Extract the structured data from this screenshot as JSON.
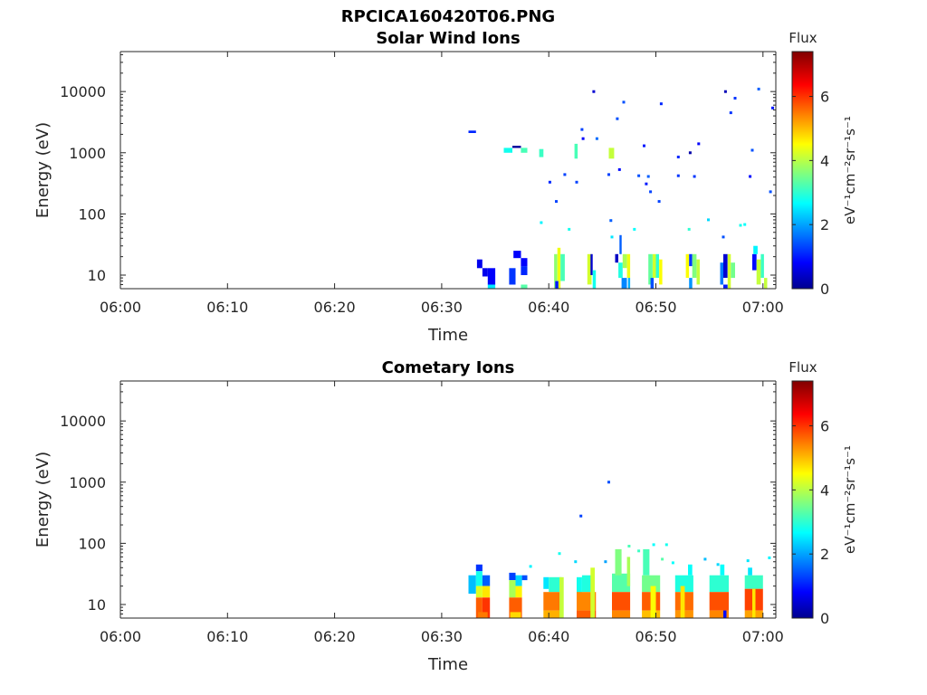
{
  "figure_title": "RPCICA160420T06.PNG",
  "chart_data": [
    {
      "type": "heatmap",
      "title": "Solar Wind Ions",
      "xlabel": "Time",
      "ylabel": "Energy (eV)",
      "x_ticks": [
        "06:00",
        "06:10",
        "06:20",
        "06:30",
        "06:40",
        "06:50",
        "07:00"
      ],
      "xlim_min": [
        0,
        61.2
      ],
      "y_scale": "log",
      "ylim": [
        6,
        45000
      ],
      "y_ticks": [
        10,
        100,
        1000,
        10000
      ],
      "y_tick_labels": [
        "10",
        "100",
        "1000",
        "10000"
      ],
      "colorbar": {
        "title": "Flux",
        "label": "eV⁻¹cm⁻²sr⁻¹s⁻¹",
        "min": 0,
        "max": 7.4,
        "ticks": [
          0,
          2,
          4,
          6
        ],
        "colormap": "jet"
      },
      "cells": [
        [
          32.5,
          33.2,
          2100,
          2300,
          1.2
        ],
        [
          33.3,
          33.8,
          13,
          18,
          0.8
        ],
        [
          33.8,
          34.3,
          9.5,
          13,
          0.8
        ],
        [
          34.3,
          35.0,
          7,
          13,
          0.9
        ],
        [
          34.3,
          35.0,
          6,
          7,
          2.6
        ],
        [
          36.7,
          37.4,
          19,
          25,
          0.9
        ],
        [
          36.3,
          36.9,
          7,
          13,
          1.3
        ],
        [
          37.4,
          38.0,
          14,
          19,
          0.9
        ],
        [
          37.4,
          38.0,
          10,
          14,
          1.2
        ],
        [
          37.4,
          38.0,
          6,
          7,
          3.4
        ],
        [
          35.8,
          36.6,
          1000,
          1200,
          2.9
        ],
        [
          36.6,
          37.4,
          1200,
          1300,
          0.2
        ],
        [
          37.4,
          38.0,
          1000,
          1200,
          3.3
        ],
        [
          39.1,
          39.5,
          850,
          1150,
          3.2
        ],
        [
          40.5,
          40.8,
          6,
          22,
          3.8
        ],
        [
          40.8,
          41.1,
          6,
          28,
          4.5
        ],
        [
          41.1,
          41.5,
          8,
          22,
          3.3
        ],
        [
          40.6,
          40.9,
          6,
          8,
          1.1
        ],
        [
          42.4,
          42.7,
          800,
          1400,
          3.3
        ],
        [
          43.6,
          44.0,
          7,
          22,
          4.3
        ],
        [
          43.9,
          44.1,
          10,
          22,
          0.6
        ],
        [
          44.1,
          44.4,
          6,
          12,
          2.9
        ],
        [
          45.6,
          46.1,
          800,
          1200,
          4.2
        ],
        [
          46.2,
          46.5,
          16,
          22,
          0.5
        ],
        [
          46.5,
          46.9,
          9,
          16,
          3.0
        ],
        [
          46.9,
          47.3,
          13,
          22,
          4.0
        ],
        [
          47.3,
          47.6,
          9,
          22,
          4.5
        ],
        [
          46.8,
          47.3,
          6,
          9,
          1.9
        ],
        [
          46.6,
          46.8,
          22,
          45,
          1.6
        ],
        [
          47.4,
          47.6,
          6,
          9,
          2.2
        ],
        [
          49.3,
          49.7,
          7,
          22,
          3.5
        ],
        [
          49.7,
          50.0,
          9,
          22,
          4.3
        ],
        [
          50.0,
          50.3,
          9,
          22,
          3.1
        ],
        [
          50.3,
          50.6,
          7,
          18,
          4.6
        ],
        [
          49.5,
          49.8,
          6,
          9,
          1.5
        ],
        [
          52.8,
          53.1,
          9,
          22,
          4.6
        ],
        [
          53.1,
          53.4,
          14,
          22,
          1.3
        ],
        [
          53.4,
          53.8,
          9,
          22,
          3.7
        ],
        [
          53.8,
          54.1,
          7,
          18,
          4.2
        ],
        [
          53.1,
          53.4,
          6,
          9,
          2.0
        ],
        [
          56.0,
          56.3,
          7,
          16,
          1.8
        ],
        [
          56.3,
          56.7,
          9,
          22,
          0.6
        ],
        [
          56.7,
          57.0,
          6,
          22,
          4.3
        ],
        [
          57.0,
          57.4,
          9,
          16,
          3.6
        ],
        [
          56.3,
          56.7,
          6,
          7,
          1.1
        ],
        [
          59.0,
          59.4,
          12,
          22,
          1.0
        ],
        [
          59.1,
          59.5,
          22,
          30,
          2.7
        ],
        [
          59.4,
          59.8,
          7,
          18,
          4.2
        ],
        [
          59.8,
          60.1,
          9,
          22,
          3.2
        ],
        [
          60.1,
          60.4,
          6,
          9,
          4.2
        ]
      ],
      "dots": [
        [
          44.2,
          10000,
          0.6
        ],
        [
          47.0,
          6700,
          1.5
        ],
        [
          50.5,
          6300,
          1.2
        ],
        [
          56.5,
          10000,
          0.4
        ],
        [
          57.4,
          7800,
          1.3
        ],
        [
          59.6,
          11000,
          1.6
        ],
        [
          60.9,
          5400,
          1.1
        ],
        [
          46.4,
          3600,
          1.5
        ],
        [
          43.1,
          2400,
          1.4
        ],
        [
          57.0,
          4500,
          1.3
        ],
        [
          43.2,
          1700,
          0.9
        ],
        [
          44.5,
          1700,
          1.7
        ],
        [
          48.9,
          1300,
          1.1
        ],
        [
          54.0,
          1400,
          0.9
        ],
        [
          53.2,
          1000,
          0.3
        ],
        [
          59.0,
          1100,
          1.5
        ],
        [
          52.1,
          850,
          1.2
        ],
        [
          41.5,
          440,
          1.4
        ],
        [
          42.6,
          330,
          1.4
        ],
        [
          40.1,
          330,
          1.2
        ],
        [
          45.6,
          440,
          1.4
        ],
        [
          46.6,
          530,
          1.0
        ],
        [
          48.4,
          420,
          1.5
        ],
        [
          49.3,
          410,
          1.6
        ],
        [
          49.1,
          310,
          1.1
        ],
        [
          49.5,
          230,
          1.4
        ],
        [
          50.3,
          160,
          1.4
        ],
        [
          52.1,
          420,
          1.3
        ],
        [
          53.6,
          410,
          1.3
        ],
        [
          58.8,
          410,
          1.0
        ],
        [
          60.7,
          230,
          1.5
        ],
        [
          40.7,
          160,
          1.4
        ],
        [
          39.3,
          72,
          2.7
        ],
        [
          41.9,
          56,
          2.9
        ],
        [
          45.8,
          78,
          1.6
        ],
        [
          48.0,
          56,
          2.8
        ],
        [
          54.9,
          80,
          2.5
        ],
        [
          58.3,
          67,
          2.8
        ],
        [
          45.9,
          42,
          2.6
        ],
        [
          56.3,
          42,
          1.5
        ],
        [
          57.9,
          65,
          2.9
        ],
        [
          53.1,
          56,
          3.1
        ]
      ]
    },
    {
      "type": "heatmap",
      "title": "Cometary Ions",
      "xlabel": "Time",
      "ylabel": "Energy (eV)",
      "x_ticks": [
        "06:00",
        "06:10",
        "06:20",
        "06:30",
        "06:40",
        "06:50",
        "07:00"
      ],
      "xlim_min": [
        0,
        61.2
      ],
      "y_scale": "log",
      "ylim": [
        6,
        45000
      ],
      "y_ticks": [
        10,
        100,
        1000,
        10000
      ],
      "y_tick_labels": [
        "10",
        "100",
        "1000",
        "10000"
      ],
      "colorbar": {
        "title": "Flux",
        "label": "eV⁻¹cm⁻²sr⁻¹s⁻¹",
        "min": 0,
        "max": 7.4,
        "ticks": [
          0,
          2,
          4,
          6
        ],
        "colormap": "jet"
      },
      "cells": [
        [
          33.2,
          33.8,
          35,
          45,
          1.3
        ],
        [
          32.5,
          33.2,
          15,
          30,
          2.3
        ],
        [
          33.2,
          33.8,
          20,
          35,
          2.9
        ],
        [
          33.8,
          34.5,
          20,
          30,
          1.6
        ],
        [
          33.2,
          33.8,
          13,
          20,
          4.4
        ],
        [
          33.8,
          34.5,
          13,
          20,
          4.8
        ],
        [
          33.2,
          33.8,
          6,
          13,
          5.8
        ],
        [
          33.8,
          34.5,
          6,
          13,
          6.1
        ],
        [
          33.4,
          34.3,
          6,
          7.5,
          5.6
        ],
        [
          36.3,
          36.9,
          25,
          33,
          1.4
        ],
        [
          36.9,
          37.5,
          20,
          30,
          2.5
        ],
        [
          36.3,
          36.9,
          13,
          25,
          4.0
        ],
        [
          36.9,
          37.5,
          13,
          20,
          4.7
        ],
        [
          36.3,
          37.5,
          6,
          13,
          5.8
        ],
        [
          36.4,
          37.4,
          6,
          7.5,
          4.9
        ],
        [
          37.5,
          38.0,
          25,
          30,
          1.5
        ],
        [
          39.5,
          40.0,
          18,
          28,
          2.6
        ],
        [
          40.0,
          41.2,
          16,
          28,
          3.1
        ],
        [
          39.5,
          41.3,
          8,
          16,
          5.6
        ],
        [
          39.5,
          41.3,
          6,
          8,
          5.2
        ],
        [
          41.0,
          41.4,
          6,
          28,
          4.2
        ],
        [
          42.6,
          43.1,
          14,
          28,
          2.9
        ],
        [
          43.1,
          44.2,
          16,
          30,
          3.0
        ],
        [
          42.6,
          44.4,
          8,
          16,
          5.5
        ],
        [
          42.6,
          44.4,
          6,
          8,
          5.8
        ],
        [
          43.9,
          44.3,
          6,
          40,
          4.3
        ],
        [
          45.9,
          47.6,
          16,
          32,
          3.4
        ],
        [
          45.9,
          47.6,
          8,
          16,
          5.9
        ],
        [
          45.9,
          47.6,
          6,
          8,
          5.5
        ],
        [
          46.2,
          46.8,
          30,
          80,
          3.7
        ],
        [
          47.3,
          47.6,
          20,
          60,
          4.0
        ],
        [
          48.7,
          50.4,
          16,
          30,
          3.6
        ],
        [
          48.7,
          50.4,
          8,
          16,
          5.8
        ],
        [
          48.7,
          50.4,
          6,
          8,
          5.1
        ],
        [
          49.5,
          50.0,
          6,
          20,
          4.6
        ],
        [
          48.8,
          49.4,
          30,
          80,
          3.3
        ],
        [
          51.8,
          53.5,
          16,
          30,
          3.0
        ],
        [
          51.8,
          53.5,
          8,
          16,
          5.7
        ],
        [
          51.8,
          53.5,
          6,
          8,
          5.4
        ],
        [
          52.3,
          52.7,
          6,
          20,
          4.8
        ],
        [
          53.0,
          53.4,
          30,
          45,
          2.8
        ],
        [
          55.0,
          56.8,
          16,
          30,
          3.1
        ],
        [
          55.0,
          56.8,
          8,
          16,
          5.9
        ],
        [
          55.0,
          56.8,
          6,
          8,
          5.5
        ],
        [
          56.3,
          56.6,
          6,
          8,
          1.0
        ],
        [
          56.0,
          56.4,
          30,
          45,
          2.8
        ],
        [
          58.3,
          60.0,
          18,
          30,
          3.2
        ],
        [
          58.3,
          60.0,
          8,
          18,
          6.0
        ],
        [
          58.3,
          60.0,
          6,
          8,
          5.3
        ],
        [
          59.0,
          59.3,
          6,
          18,
          4.8
        ],
        [
          58.6,
          59.0,
          30,
          40,
          2.6
        ]
      ],
      "dots": [
        [
          45.6,
          1000,
          1.5
        ],
        [
          43.0,
          280,
          1.4
        ],
        [
          49.8,
          95,
          2.8
        ],
        [
          51.0,
          95,
          2.9
        ],
        [
          47.5,
          90,
          3.3
        ],
        [
          41.0,
          68,
          2.9
        ],
        [
          48.4,
          75,
          3.2
        ],
        [
          60.6,
          58,
          2.7
        ],
        [
          54.6,
          55,
          2.3
        ],
        [
          42.5,
          50,
          2.5
        ],
        [
          51.6,
          48,
          2.8
        ],
        [
          45.3,
          50,
          2.1
        ],
        [
          38.3,
          42,
          2.7
        ],
        [
          58.6,
          52,
          2.6
        ],
        [
          50.6,
          55,
          3.4
        ],
        [
          55.8,
          45,
          2.5
        ]
      ]
    }
  ]
}
